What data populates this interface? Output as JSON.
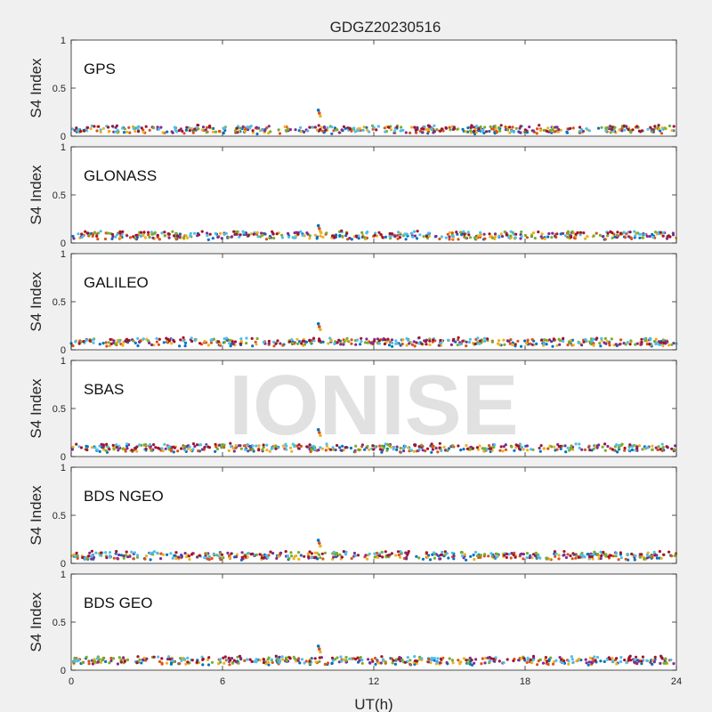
{
  "figure": {
    "title": "GDGZ20230516",
    "xlabel": "UT(h)",
    "watermark": "IONISE"
  },
  "chart_data": {
    "type": "scatter",
    "title": "GDGZ20230516",
    "xlabel": "UT(h)",
    "ylabel": "S4 Index",
    "xlim": [
      0,
      24
    ],
    "ylim": [
      0,
      1
    ],
    "xticks": [
      "0",
      "6",
      "12",
      "18",
      "24"
    ],
    "yticks": [
      "0",
      "0.5",
      "1"
    ],
    "grid": false,
    "series_colors": [
      "#0072bd",
      "#d95319",
      "#edb120",
      "#7e2f8e",
      "#77ac30",
      "#4dbeee",
      "#a2142f"
    ],
    "panels": [
      {
        "label": "GPS",
        "baseline": 0.07,
        "spike": {
          "x": 9.8,
          "y": 0.27
        }
      },
      {
        "label": "GLONASS",
        "baseline": 0.08,
        "spike": {
          "x": 9.8,
          "y": 0.18
        }
      },
      {
        "label": "GALILEO",
        "baseline": 0.08,
        "spike": {
          "x": 9.8,
          "y": 0.27
        }
      },
      {
        "label": "SBAS",
        "baseline": 0.09,
        "spike": {
          "x": 9.8,
          "y": 0.28
        }
      },
      {
        "label": "BDS NGEO",
        "baseline": 0.08,
        "spike": {
          "x": 9.8,
          "y": 0.24
        }
      },
      {
        "label": "BDS GEO",
        "baseline": 0.1,
        "spike": {
          "x": 9.8,
          "y": 0.25
        }
      }
    ]
  }
}
